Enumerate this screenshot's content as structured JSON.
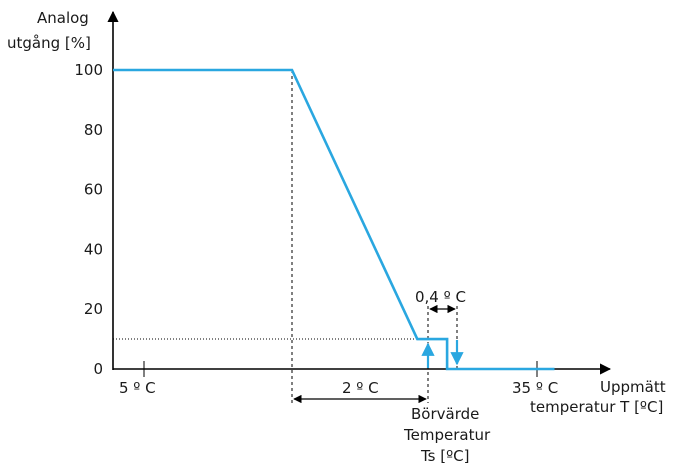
{
  "chart_data": {
    "type": "line",
    "ylabel_line1": "Analog",
    "ylabel_line2": "utgång [%]",
    "xlabel_line1": "Uppmätt",
    "xlabel_line2": "temperatur T [ºC]",
    "y_ticks": [
      "0",
      "20",
      "40",
      "60",
      "80",
      "100"
    ],
    "y_tick_values": [
      0,
      20,
      40,
      60,
      80,
      100
    ],
    "ylim": [
      0,
      105
    ],
    "x_tick_left_label": "5 º C",
    "x_tick_right_label": "35 º C",
    "hysteresis_label": "0,4 º C",
    "band_label": "2 º C",
    "setpoint_line1": "Börvärde",
    "setpoint_line2": "Temperatur",
    "setpoint_line3": "Ts [ºC]",
    "series": [
      {
        "values": [
          {
            "x": 0.0,
            "y": 100
          },
          {
            "x": 6.0,
            "y": 100
          },
          {
            "x": 10.2,
            "y": 10
          },
          {
            "x": 11.2,
            "y": 10
          },
          {
            "x": 11.2,
            "y": 0
          },
          {
            "x": 14.8,
            "y": 0
          }
        ]
      }
    ],
    "colors": {
      "line": "#2aa7e0",
      "axis": "#000000"
    }
  }
}
